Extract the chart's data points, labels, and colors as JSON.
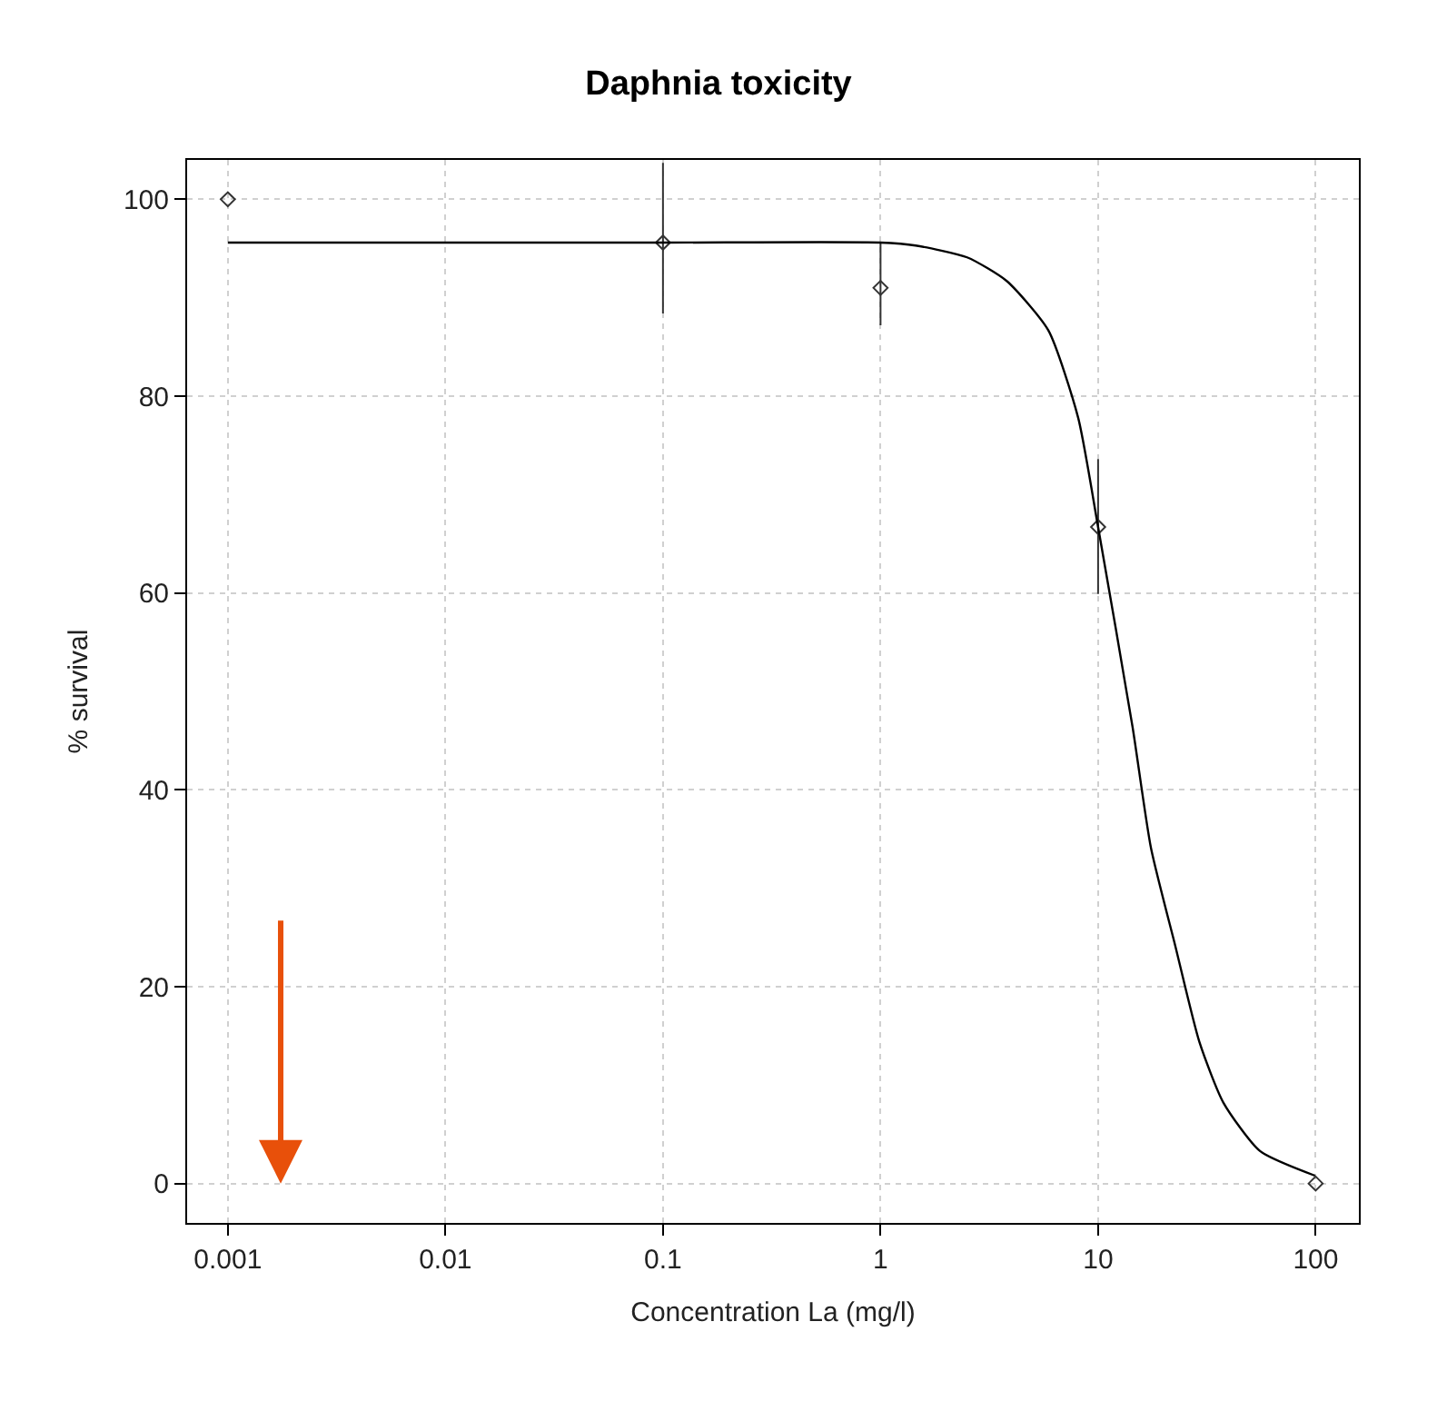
{
  "chart_data": {
    "type": "scatter",
    "title": "Daphnia toxicity",
    "xlabel": "Concentration La (mg/l)",
    "ylabel": "% survival",
    "log": "x",
    "xlim": [
      0.00065,
      158
    ],
    "xticks": [
      0.001,
      0.01,
      0.1,
      1,
      10,
      100
    ],
    "ylim": [
      -4,
      104
    ],
    "yticks": [
      0,
      20,
      40,
      60,
      80,
      100
    ],
    "grid": true,
    "series": [
      {
        "color": "#333333",
        "marker": "diamond",
        "x": [
          0.001,
          0.1,
          1,
          10,
          100
        ],
        "values": [
          100,
          95.6,
          91.0,
          66.7,
          0
        ],
        "errors": [
          null,
          [
            88.4,
            103.7
          ],
          [
            87.2,
            95.6
          ],
          [
            59.9,
            73.6
          ],
          null
        ]
      },
      {
        "type": "line",
        "color": "#000000",
        "marker": "none",
        "line_style": "solid",
        "x": [
          0.001,
          0.1,
          1,
          1.45,
          2.5,
          3.8,
          5.9,
          8.1,
          10,
          14.4,
          17.5,
          22.6,
          29.2,
          37.7,
          55.5,
          99.3
        ],
        "values": [
          95.6,
          95.6,
          95.6,
          95.3,
          94.1,
          91.7,
          86.7,
          77.8,
          66.7,
          46.4,
          34.1,
          24.2,
          14.4,
          8.2,
          3.3,
          0.8
        ]
      }
    ]
  }
}
